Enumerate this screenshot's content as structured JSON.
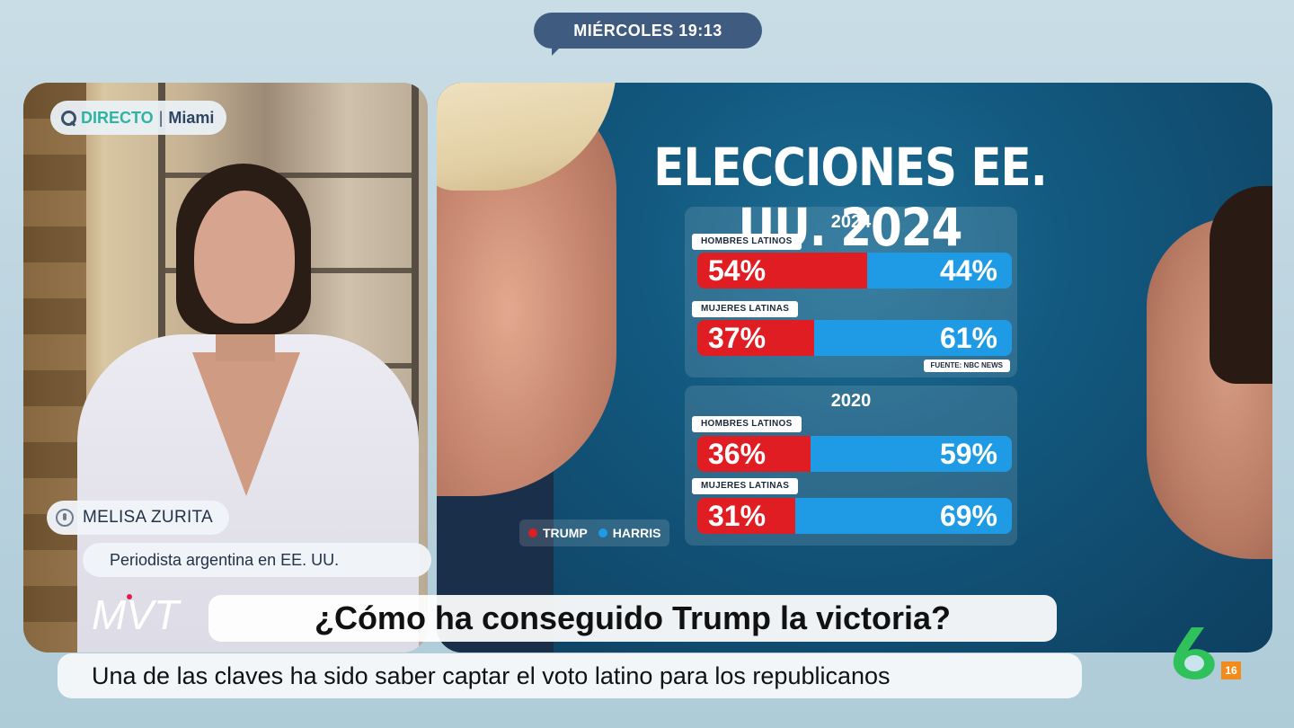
{
  "broadcast": {
    "time": "MIÉRCOLES 19:13"
  },
  "live_tag": {
    "status": "DIRECTO",
    "separator": "|",
    "location": "Miami"
  },
  "guest": {
    "name": "MELISA ZURITA",
    "role": "Periodista argentina en EE. UU."
  },
  "show_logo": "MVT",
  "headline": "¿Cómo ha conseguido Trump la victoria?",
  "subline": "Una de las claves ha sido saber captar el voto latino para los republicanos",
  "channel": {
    "logo_icon": "laSexta-6-logo-icon",
    "age_rating": "16",
    "age_color": "#f28b1e"
  },
  "chart_data": {
    "type": "bar",
    "title": "ELECCIONES EE. UU. 2024",
    "orientation": "horizontal-stacked",
    "source": "FUENTE: NBC NEWS",
    "legend": [
      {
        "name": "TRUMP",
        "color": "#e11d24"
      },
      {
        "name": "HARRIS",
        "color": "#1f9be6"
      }
    ],
    "groups": [
      {
        "year": "2024",
        "rows": [
          {
            "category": "HOMBRES LATINOS",
            "trump": 54,
            "harris": 44,
            "trump_label": "54%",
            "harris_label": "44%"
          },
          {
            "category": "MUJERES LATINAS",
            "trump": 37,
            "harris": 61,
            "trump_label": "37%",
            "harris_label": "61%"
          }
        ]
      },
      {
        "year": "2020",
        "rows": [
          {
            "category": "HOMBRES LATINOS",
            "trump": 36,
            "harris": 59,
            "trump_label": "36%",
            "harris_label": "59%"
          },
          {
            "category": "MUJERES LATINAS",
            "trump": 31,
            "harris": 69,
            "trump_label": "31%",
            "harris_label": "69%"
          }
        ]
      }
    ]
  }
}
